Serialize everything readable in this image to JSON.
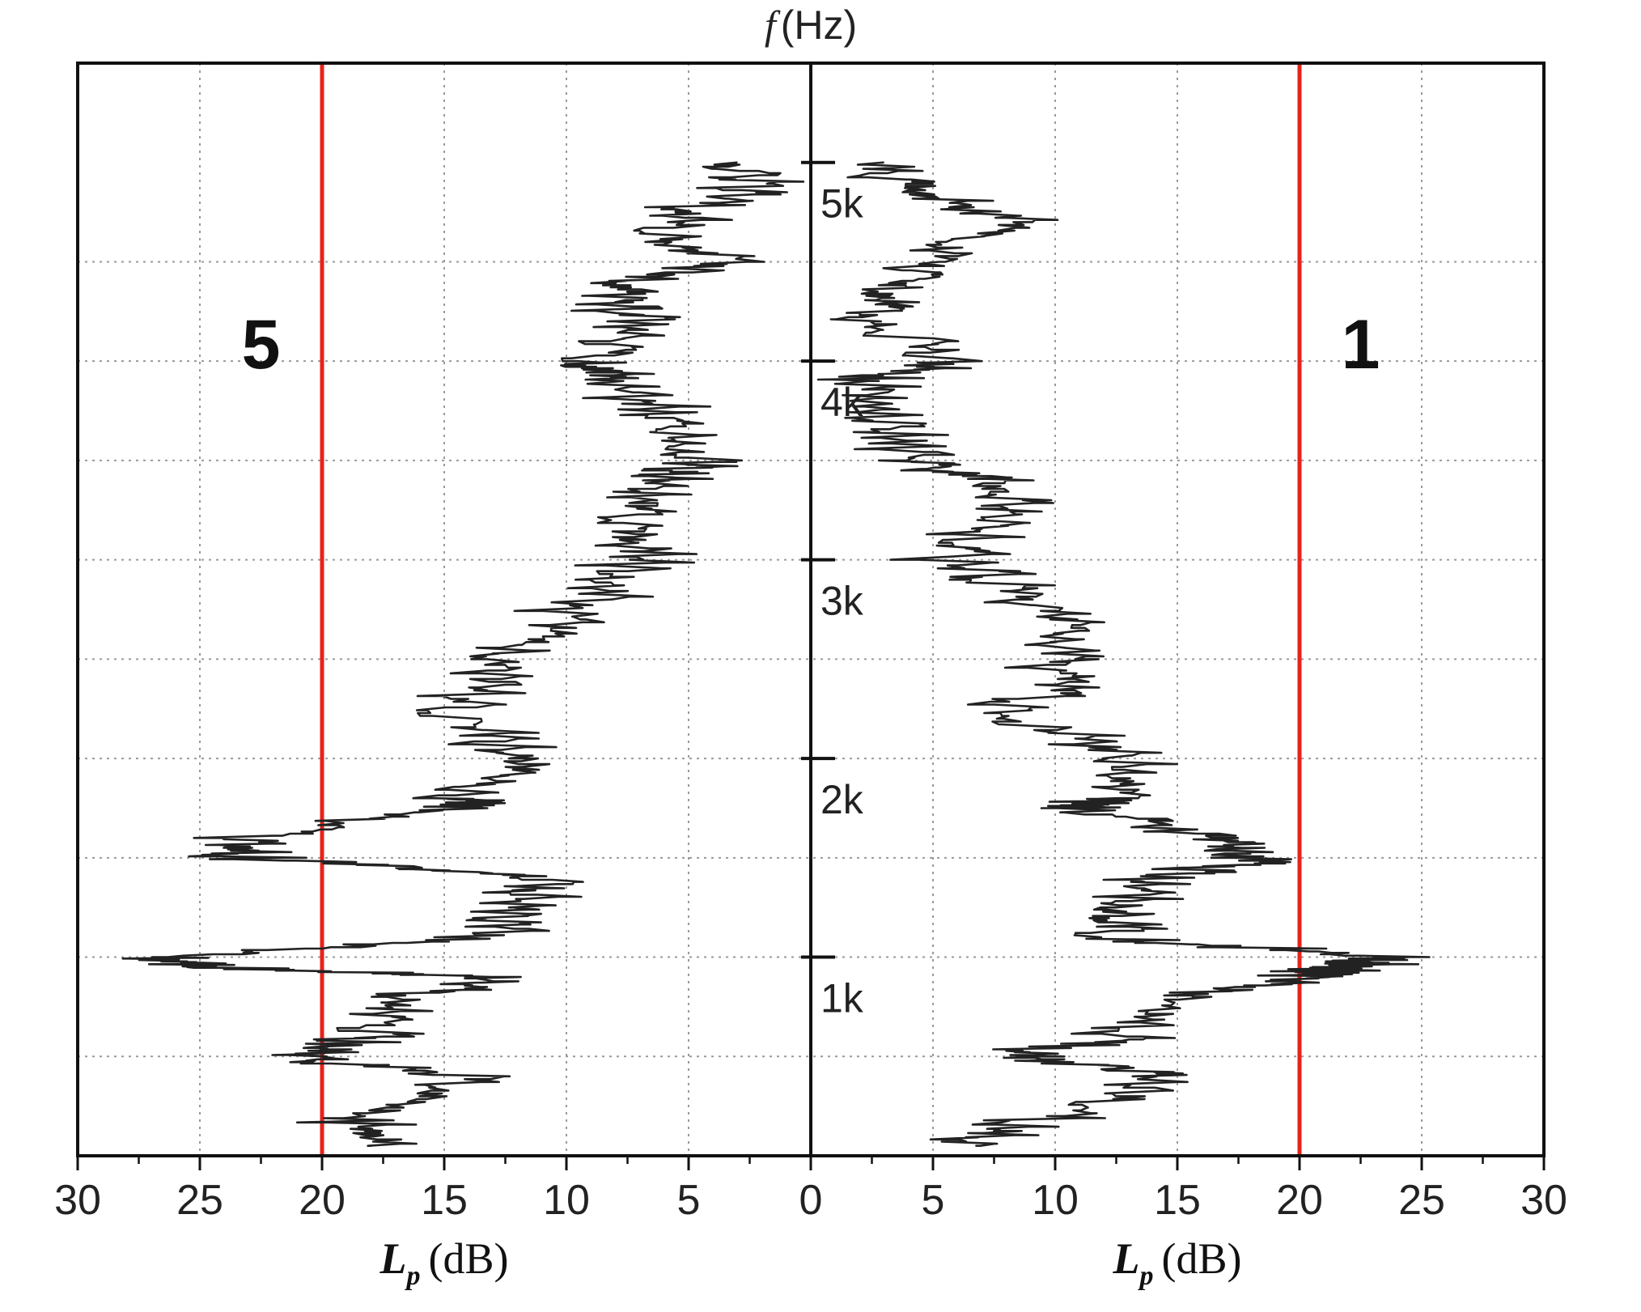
{
  "chart_data": {
    "type": "line",
    "title": "f (Hz)",
    "title_parts": {
      "var": "f",
      "unit": "(Hz)"
    },
    "x_axis": {
      "label_left": {
        "main": "L",
        "sub": "p",
        "unit": "(dB)"
      },
      "label_right": {
        "main": "L",
        "sub": "p",
        "unit": "(dB)"
      },
      "range": [
        0,
        30
      ],
      "ticks": [
        30,
        25,
        20,
        15,
        10,
        5,
        0,
        5,
        10,
        15,
        20,
        25,
        30
      ],
      "mirrored": true
    },
    "y_axis": {
      "range": [
        0,
        5000
      ],
      "tick_labels": [
        "1k",
        "2k",
        "3k",
        "4k",
        "5k"
      ],
      "tick_values": [
        1000,
        2000,
        3000,
        4000,
        5000
      ],
      "minor_grid": [
        500,
        1000,
        1500,
        2000,
        2500,
        3000,
        3500,
        4000,
        4500
      ]
    },
    "grid": true,
    "reference_lines": [
      {
        "side": "left",
        "x": 20,
        "color": "#e8231b"
      },
      {
        "side": "right",
        "x": 20,
        "color": "#e8231b"
      }
    ],
    "panel_labels": {
      "left": "5",
      "right": "1"
    },
    "series": [
      {
        "name": "5",
        "side": "left",
        "color": "#222222",
        "f": [
          50,
          200,
          400,
          500,
          600,
          800,
          900,
          950,
          1000,
          1100,
          1250,
          1400,
          1500,
          1600,
          1750,
          1800,
          2000,
          2200,
          2400,
          2600,
          2800,
          3000,
          3200,
          3400,
          3500,
          3700,
          3900,
          4000,
          4200,
          4350,
          4500,
          4700,
          4850,
          5000
        ],
        "Lp": [
          18.0,
          18.5,
          14.0,
          21.0,
          18.5,
          17.5,
          12.0,
          25.0,
          27.0,
          13.0,
          12.0,
          11.0,
          23.0,
          24.0,
          14.5,
          14.0,
          12.0,
          15.0,
          12.5,
          12.0,
          9.0,
          6.5,
          8.0,
          6.0,
          4.5,
          5.5,
          8.5,
          9.0,
          7.0,
          8.0,
          4.0,
          6.0,
          2.5,
          3.0
        ]
      },
      {
        "name": "1",
        "side": "right",
        "color": "#222222",
        "f": [
          50,
          200,
          400,
          500,
          600,
          800,
          900,
          950,
          1000,
          1100,
          1250,
          1400,
          1500,
          1600,
          1750,
          1800,
          2000,
          2200,
          2400,
          2600,
          2800,
          3000,
          3200,
          3400,
          3500,
          3700,
          3900,
          4000,
          4200,
          4350,
          4500,
          4700,
          4850,
          5000
        ],
        "Lp": [
          6.0,
          10.0,
          15.0,
          8.0,
          13.0,
          16.0,
          20.0,
          22.0,
          23.0,
          12.0,
          13.0,
          14.0,
          18.5,
          17.0,
          11.0,
          12.0,
          13.0,
          8.0,
          10.0,
          11.0,
          9.0,
          6.0,
          7.5,
          8.0,
          4.0,
          3.0,
          2.0,
          6.0,
          2.0,
          3.0,
          5.0,
          8.0,
          4.5,
          3.0
        ]
      }
    ]
  }
}
